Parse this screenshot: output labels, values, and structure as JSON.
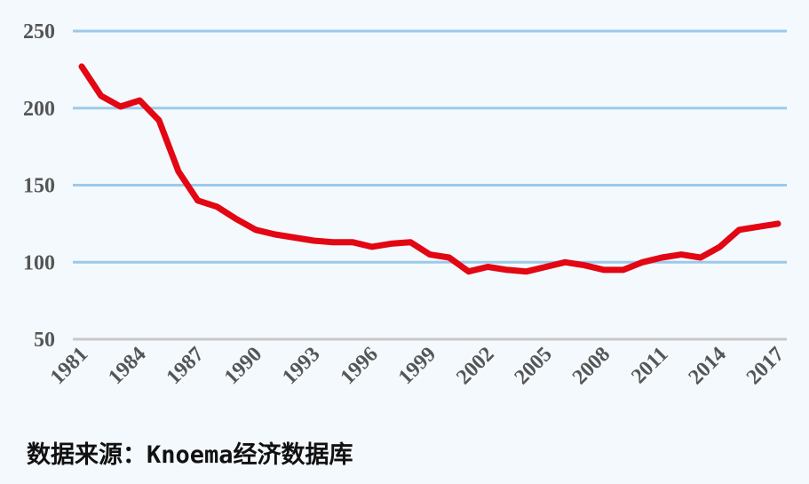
{
  "chart_data": {
    "type": "line",
    "title": "",
    "xlabel": "",
    "ylabel": "",
    "ylim": [
      50,
      250
    ],
    "y_ticks": [
      50,
      100,
      150,
      200,
      250
    ],
    "x_tick_labels": [
      "1981",
      "1984",
      "1987",
      "1990",
      "1993",
      "1996",
      "1999",
      "2002",
      "2005",
      "2008",
      "2011",
      "2014",
      "2017"
    ],
    "grid": "horizontal",
    "legend": "none",
    "series": [
      {
        "color": "#e30613",
        "x": [
          1981,
          1982,
          1983,
          1984,
          1985,
          1986,
          1987,
          1988,
          1989,
          1990,
          1991,
          1992,
          1993,
          1994,
          1995,
          1996,
          1997,
          1998,
          1999,
          2000,
          2001,
          2002,
          2003,
          2004,
          2005,
          2006,
          2007,
          2008,
          2009,
          2010,
          2011,
          2012,
          2013,
          2014,
          2015,
          2016,
          2017
        ],
        "values": [
          227,
          208,
          201,
          205,
          192,
          159,
          140,
          136,
          128,
          121,
          118,
          116,
          114,
          113,
          113,
          110,
          112,
          113,
          105,
          103,
          94,
          97,
          95,
          94,
          97,
          100,
          98,
          95,
          95,
          100,
          103,
          105,
          103,
          110,
          121,
          123,
          125
        ]
      }
    ],
    "colors": {
      "gridline": "#9dc9ea",
      "baseline": "#c8c8c8",
      "tick_text": "#555555",
      "background": "#f3f9fd"
    }
  },
  "source_note": "数据来源：Knoema经济数据库"
}
